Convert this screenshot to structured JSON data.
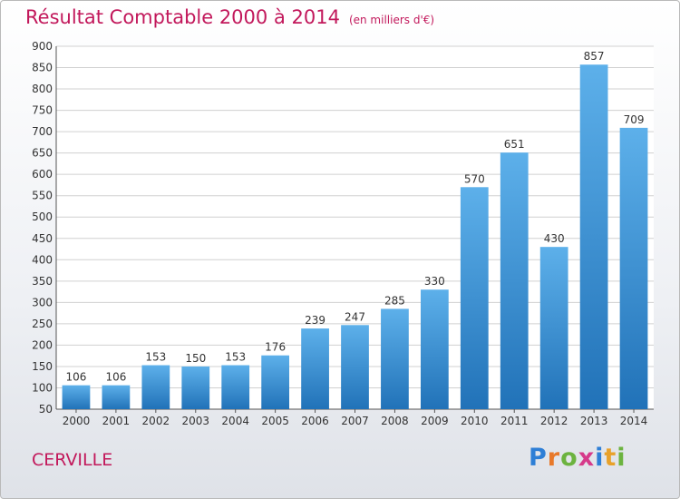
{
  "header": {
    "title": "Résultat Comptable 2000 à 2014",
    "subtitle": "(en milliers d'€)"
  },
  "footer": {
    "city": "CERVILLE",
    "logo": [
      "P",
      "r",
      "o",
      "x",
      "i",
      "t",
      "i"
    ]
  },
  "colors": {
    "bar_top": "#5db0ea",
    "bar_bottom": "#2172b8",
    "title": "#c2185b",
    "grid": "#d0d0d0"
  },
  "chart_data": {
    "type": "bar",
    "categories": [
      "2000",
      "2001",
      "2002",
      "2003",
      "2004",
      "2005",
      "2006",
      "2007",
      "2008",
      "2009",
      "2010",
      "2011",
      "2012",
      "2013",
      "2014"
    ],
    "values": [
      106,
      106,
      153,
      150,
      153,
      176,
      239,
      247,
      285,
      330,
      570,
      651,
      430,
      857,
      709
    ],
    "ylim": [
      50,
      900
    ],
    "yticks": [
      50,
      100,
      150,
      200,
      250,
      300,
      350,
      400,
      450,
      500,
      550,
      600,
      650,
      700,
      750,
      800,
      850,
      900
    ],
    "grid": true,
    "data_labels": true
  }
}
